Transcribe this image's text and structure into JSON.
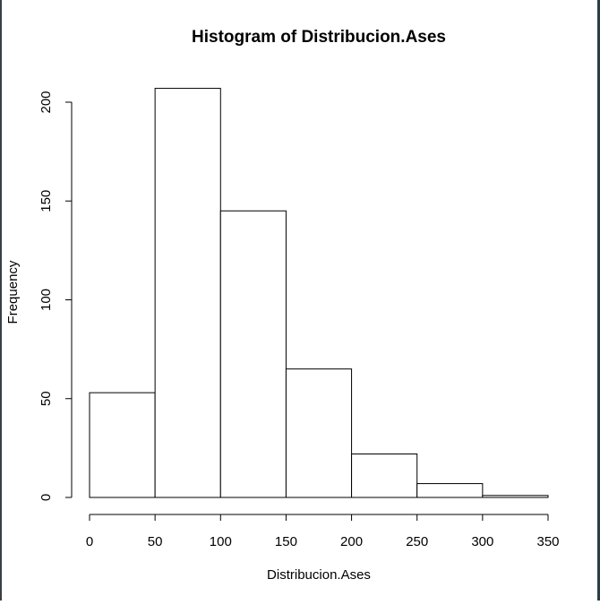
{
  "chart_data": {
    "type": "bar",
    "title": "Histogram of Distribucion.Ases",
    "xlabel": "Distribucion.Ases",
    "ylabel": "Frequency",
    "bins": [
      {
        "from": 0,
        "to": 50,
        "count": 53
      },
      {
        "from": 50,
        "to": 100,
        "count": 207
      },
      {
        "from": 100,
        "to": 150,
        "count": 145
      },
      {
        "from": 150,
        "to": 200,
        "count": 65
      },
      {
        "from": 200,
        "to": 250,
        "count": 22
      },
      {
        "from": 250,
        "to": 300,
        "count": 7
      },
      {
        "from": 300,
        "to": 350,
        "count": 1
      }
    ],
    "xlim": [
      0,
      350
    ],
    "ylim": [
      0,
      200
    ],
    "x_ticks": [
      "0",
      "50",
      "100",
      "150",
      "200",
      "250",
      "300",
      "350"
    ],
    "y_ticks": [
      "0",
      "50",
      "100",
      "150",
      "200"
    ],
    "grid": false,
    "colors": {
      "bar_fill": "#ffffff",
      "bar_stroke": "#000000"
    }
  }
}
